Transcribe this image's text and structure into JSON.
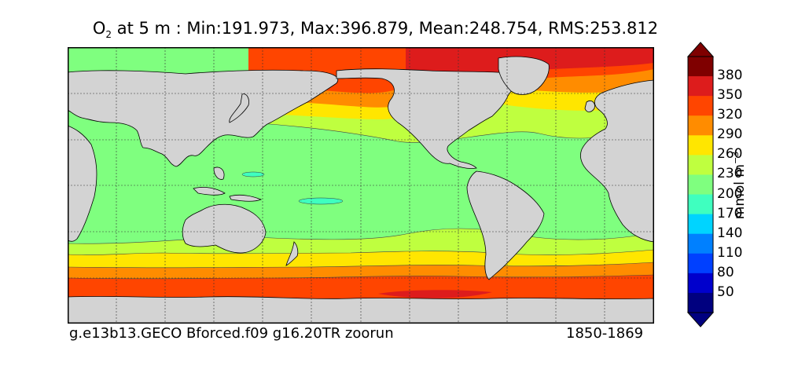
{
  "title": {
    "var_main": "O",
    "var_sub": "2",
    "rest": " at 5 m : Min:191.973, Max:396.879, Mean:248.754, RMS:253.812"
  },
  "footer": {
    "run": "g.e13b13.GECO Bforced.f09 g16.20TR zoorun",
    "years": "1850-1869"
  },
  "colorbar": {
    "ticks": [
      "380",
      "350",
      "320",
      "290",
      "260",
      "230",
      "200",
      "170",
      "140",
      "110",
      "80",
      "50"
    ],
    "units_main": "mmol m",
    "units_sup": "−3",
    "colors": [
      "#7f0000",
      "#dd1c1c",
      "#ff4500",
      "#ff8c00",
      "#ffe600",
      "#bfff3f",
      "#7fff7f",
      "#3fffbf",
      "#00d4ff",
      "#0080ff",
      "#0040ff",
      "#0000cc",
      "#00007f"
    ]
  },
  "map": {
    "land_color": "#d3d3d3",
    "band_colors": {
      "c200": "#7fff7f",
      "c230": "#bfff3f",
      "c260": "#ffe600",
      "c290": "#ff8c00",
      "c320": "#ff4500",
      "c350": "#dd1c1c",
      "c380": "#7f0000",
      "c170": "#3fffbf"
    }
  }
}
